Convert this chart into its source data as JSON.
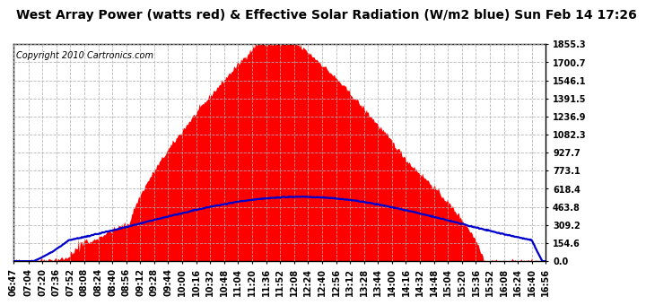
{
  "title": "West Array Power (watts red) & Effective Solar Radiation (W/m2 blue) Sun Feb 14 17:26",
  "copyright": "Copyright 2010 Cartronics.com",
  "bg_color": "#ffffff",
  "y_ticks": [
    0.0,
    154.6,
    309.2,
    463.8,
    618.4,
    773.1,
    927.7,
    1082.3,
    1236.9,
    1391.5,
    1546.1,
    1700.7,
    1855.3
  ],
  "x_labels": [
    "06:47",
    "07:04",
    "07:20",
    "07:36",
    "07:52",
    "08:08",
    "08:24",
    "08:40",
    "08:56",
    "09:12",
    "09:28",
    "09:44",
    "10:00",
    "10:16",
    "10:32",
    "10:48",
    "11:04",
    "11:20",
    "11:36",
    "11:52",
    "12:08",
    "12:24",
    "12:40",
    "12:56",
    "13:12",
    "13:28",
    "13:44",
    "14:00",
    "14:16",
    "14:32",
    "14:48",
    "15:04",
    "15:20",
    "15:36",
    "15:52",
    "16:08",
    "16:24",
    "16:40",
    "16:56"
  ],
  "red_color": "#ff0000",
  "blue_color": "#0000cc",
  "grid_color": "#b0b0b0",
  "title_fontsize": 10,
  "copyright_fontsize": 7,
  "tick_fontsize": 7
}
